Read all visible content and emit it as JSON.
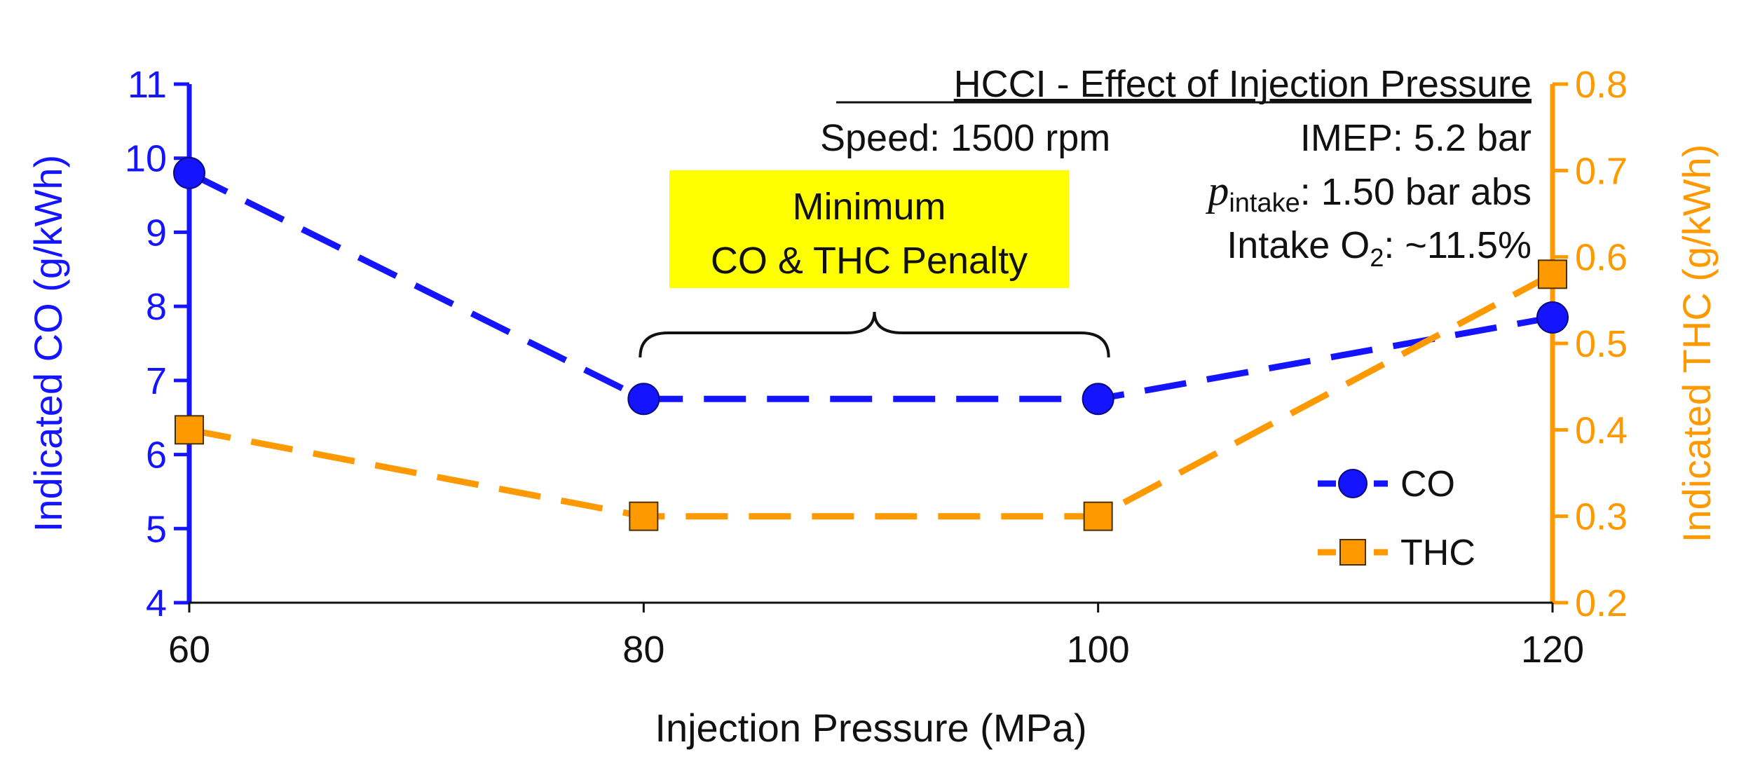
{
  "chart_data": {
    "type": "line",
    "title": "HCCI - Effect of Injection Pressure",
    "conditions": {
      "speed": "Speed: 1500 rpm",
      "imep": "IMEP: 5.2 bar",
      "pintake_symbol": "p",
      "pintake_subscript": "intake",
      "pintake_value": ": 1.50 bar abs",
      "o2_label": "Intake O",
      "o2_subscript": "2",
      "o2_value": ": ~11.5%"
    },
    "highlight": {
      "line1": "Minimum",
      "line2": "CO & THC Penalty",
      "x_range": [
        80,
        100
      ],
      "color": "#ffff00"
    },
    "xlabel": "Injection Pressure (MPa)",
    "x": [
      60,
      80,
      100,
      120
    ],
    "xticks": [
      60,
      80,
      100,
      120
    ],
    "xlim": [
      60,
      120
    ],
    "y_left": {
      "label": "Indicated CO (g/kWh)",
      "lim": [
        4,
        11
      ],
      "ticks": [
        4,
        5,
        6,
        7,
        8,
        9,
        10,
        11
      ],
      "color": "#1414ff"
    },
    "y_right": {
      "label": "Indicated THC (g/kWh)",
      "lim": [
        0.2,
        0.8
      ],
      "ticks": [
        "0.2",
        "0.3",
        "0.4",
        "0.5",
        "0.6",
        "0.7",
        "0.8"
      ],
      "color": "#ff9900"
    },
    "series": [
      {
        "name": "CO",
        "axis": "left",
        "marker": "circle",
        "color": "#1414ff",
        "values": [
          9.8,
          6.75,
          6.75,
          7.85
        ]
      },
      {
        "name": "THC",
        "axis": "right",
        "marker": "square",
        "color": "#ff9900",
        "values": [
          0.4,
          0.3,
          0.3,
          0.58
        ]
      }
    ],
    "legend": {
      "position": "lower-right",
      "entries": [
        "CO",
        "THC"
      ]
    }
  }
}
